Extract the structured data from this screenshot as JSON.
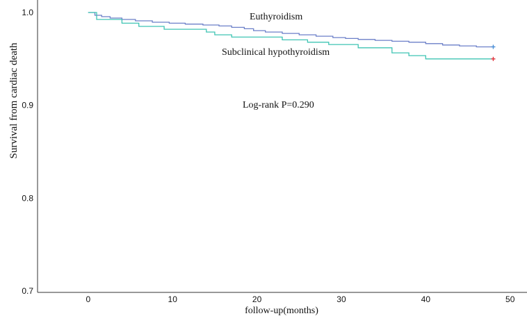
{
  "chart_data": {
    "type": "line",
    "title": "",
    "xlabel": "follow-up(months)",
    "ylabel": "Survival from cardiac death",
    "xlim": [
      -6,
      52
    ],
    "ylim": [
      0.685,
      1.0
    ],
    "xticks": [
      "0",
      "10",
      "20",
      "30",
      "40",
      "50"
    ],
    "yticks": [
      "0.7",
      "0.8",
      "0.9",
      "1.0"
    ],
    "xtick_values": [
      0,
      10,
      20,
      30,
      40,
      50
    ],
    "ytick_values": [
      0.7,
      0.8,
      0.9,
      1.0
    ],
    "grid": false,
    "legend": "none",
    "annotations": [
      "Euthyroidism",
      "Subclinical hypothyroidism",
      "Log-rank P=0.290"
    ],
    "series": [
      {
        "name": "Euthyroidism",
        "color": "#6b7fc8",
        "censor_color": "#4a8fd6",
        "step": true,
        "x": [
          0,
          0.8,
          1.6,
          2.6,
          4.0,
          5.6,
          7.6,
          9.6,
          11.5,
          13.6,
          15.5,
          17.0,
          18.5,
          19.6,
          21.0,
          23.0,
          25.0,
          27.0,
          29.0,
          30.5,
          32.0,
          34.0,
          36.0,
          38.0,
          40.0,
          42.0,
          44.0,
          46.0,
          48.0
        ],
        "y": [
          1.0,
          0.997,
          0.9955,
          0.994,
          0.9925,
          0.991,
          0.9895,
          0.9885,
          0.9875,
          0.9865,
          0.9855,
          0.984,
          0.9825,
          0.9805,
          0.979,
          0.9775,
          0.976,
          0.9745,
          0.973,
          0.972,
          0.971,
          0.97,
          0.969,
          0.968,
          0.9665,
          0.965,
          0.964,
          0.963,
          0.963
        ]
      },
      {
        "name": "Subclinical hypothyroidism",
        "color": "#3ec4b3",
        "censor_color": "#e0303a",
        "step": true,
        "x": [
          0,
          1.0,
          4.0,
          6.0,
          9.0,
          14.0,
          15.0,
          17.0,
          23.0,
          26.0,
          28.5,
          32.0,
          36.0,
          38.0,
          40.0,
          48.0
        ],
        "y": [
          1.0,
          0.9925,
          0.9885,
          0.985,
          0.982,
          0.979,
          0.976,
          0.9735,
          0.9705,
          0.968,
          0.9655,
          0.962,
          0.9565,
          0.9535,
          0.95,
          0.95
        ]
      }
    ]
  }
}
